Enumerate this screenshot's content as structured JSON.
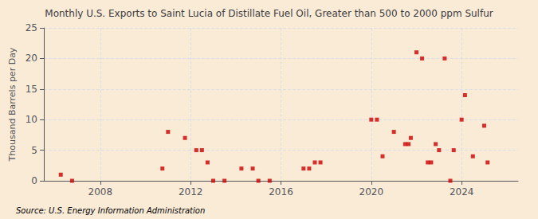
{
  "chart_data": {
    "type": "scatter",
    "title": "Monthly U.S. Exports to Saint Lucia of Distillate Fuel Oil, Greater than 500 to 2000 ppm Sulfur",
    "ylabel": "Thousand Barrels per Day",
    "annotation": "Source: U.S. Energy Information Administration",
    "color": "#cc0000",
    "marker": "square",
    "grid": true,
    "xlim": [
      2005.5,
      2026.5
    ],
    "ylim": [
      0,
      25
    ],
    "xticks": [
      2008,
      2012,
      2016,
      2020,
      2024
    ],
    "yticks": [
      0,
      5,
      10,
      15,
      20,
      25
    ],
    "x": [
      2006.25,
      2006.75,
      2010.75,
      2011.0,
      2011.75,
      2012.25,
      2012.5,
      2012.75,
      2013.0,
      2013.5,
      2014.25,
      2014.75,
      2015.0,
      2015.5,
      2017.0,
      2017.25,
      2017.5,
      2017.75,
      2020.0,
      2020.25,
      2020.5,
      2021.0,
      2021.5,
      2021.65,
      2021.75,
      2022.0,
      2022.25,
      2022.5,
      2022.65,
      2022.85,
      2023.0,
      2023.25,
      2023.5,
      2023.65,
      2024.0,
      2024.15,
      2024.5,
      2025.0,
      2025.15
    ],
    "values": [
      1,
      0,
      2,
      8,
      7,
      5,
      5,
      3,
      0,
      0,
      2,
      2,
      0,
      0,
      2,
      2,
      3,
      3,
      10,
      10,
      4,
      8,
      6,
      6,
      7,
      21,
      20,
      3,
      3,
      6,
      5,
      20,
      0,
      5,
      10,
      14,
      4,
      9,
      3
    ]
  }
}
